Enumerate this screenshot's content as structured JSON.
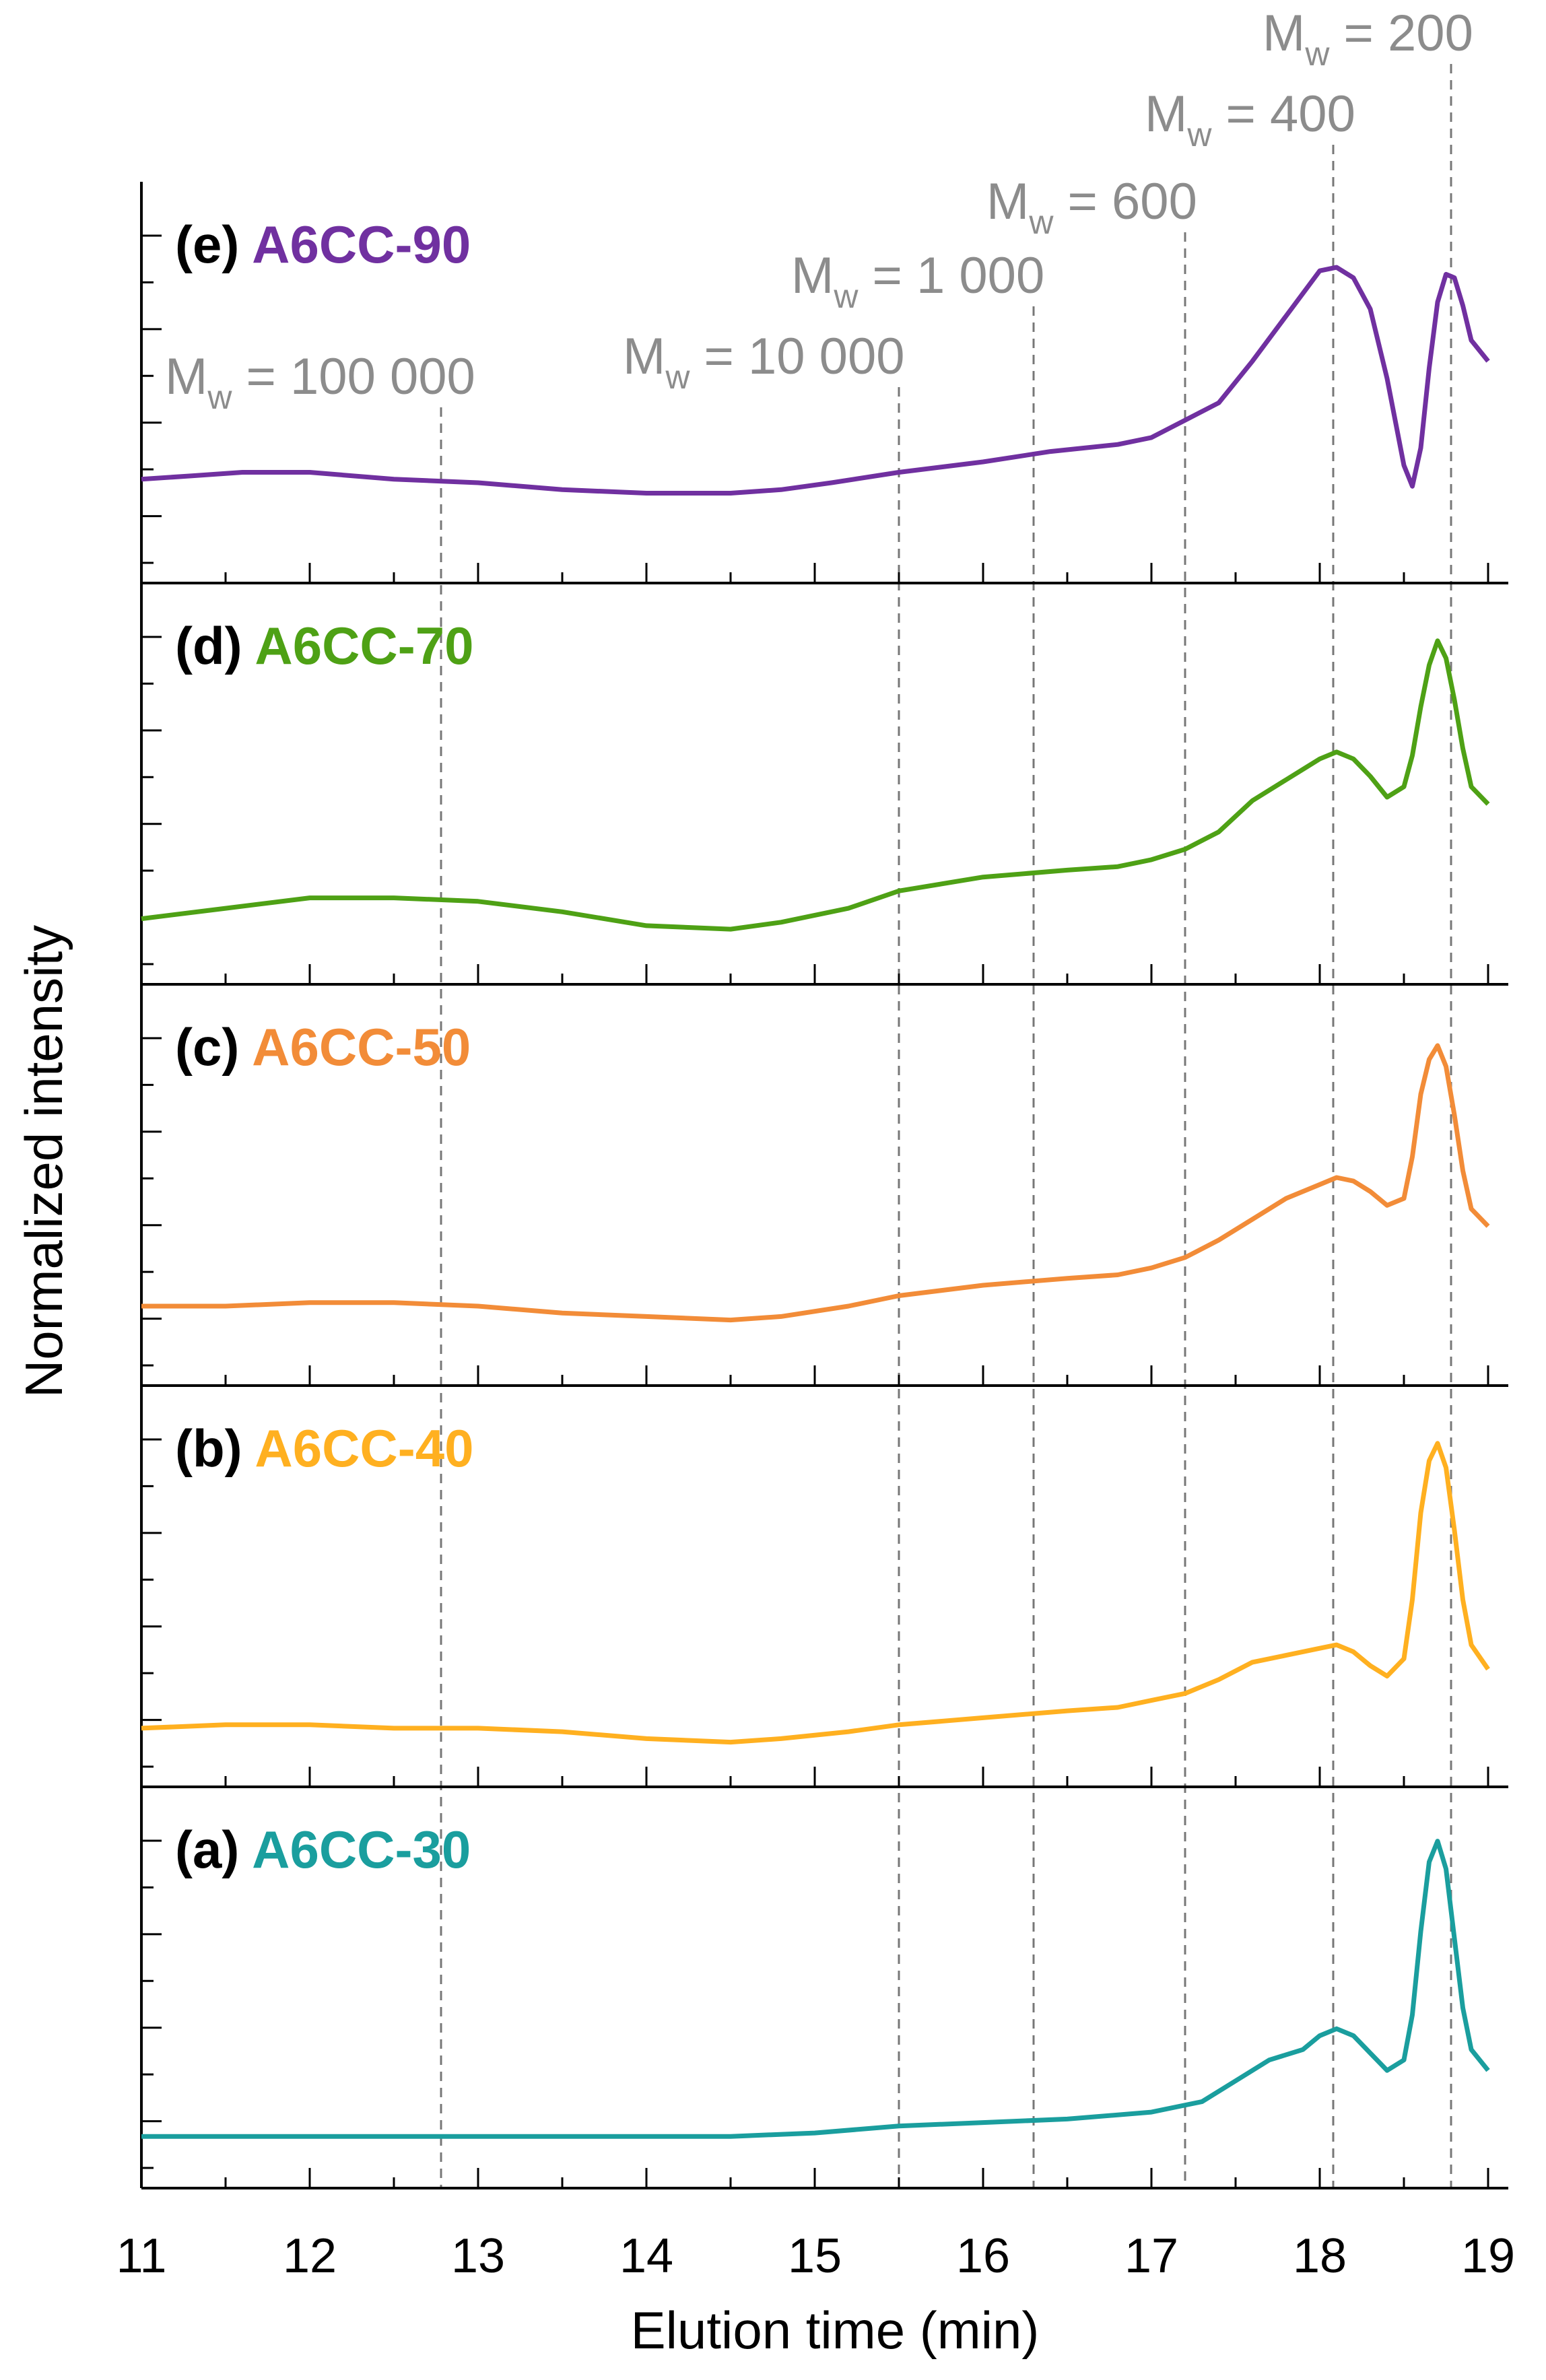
{
  "chart_data": {
    "type": "line",
    "layout": "stacked-panels",
    "xlabel": "Elution time (min)",
    "ylabel": "Normalized intensity",
    "xlim": [
      11,
      19
    ],
    "xticks": [
      "11",
      "12",
      "13",
      "14",
      "15",
      "16",
      "17",
      "18",
      "19"
    ],
    "grid": false,
    "legend": "per-panel label, top-left",
    "reference_lines": [
      {
        "x": 12.78,
        "mw_text": "= 100 000"
      },
      {
        "x": 15.5,
        "mw_text": "= 10 000"
      },
      {
        "x": 16.3,
        "mw_text": "= 1 000"
      },
      {
        "x": 17.2,
        "mw_text": "= 600"
      },
      {
        "x": 18.08,
        "mw_text": "= 400"
      },
      {
        "x": 18.78,
        "mw_text": "= 200"
      }
    ],
    "mw_symbol": "M",
    "mw_subscript": "w",
    "panels": [
      {
        "letter": "(e)",
        "name": "A6CC-90",
        "color": "#7030A0",
        "ylim": [
          0,
          1
        ],
        "x": [
          11.0,
          11.3,
          11.6,
          12.0,
          12.5,
          13.0,
          13.5,
          14.0,
          14.5,
          14.8,
          15.1,
          15.5,
          16.0,
          16.4,
          16.8,
          17.0,
          17.2,
          17.4,
          17.6,
          17.8,
          18.0,
          18.1,
          18.2,
          18.3,
          18.4,
          18.5,
          18.55,
          18.6,
          18.65,
          18.7,
          18.75,
          18.8,
          18.85,
          18.9,
          19.0
        ],
        "y": [
          0.26,
          0.27,
          0.28,
          0.28,
          0.26,
          0.25,
          0.23,
          0.22,
          0.22,
          0.23,
          0.25,
          0.28,
          0.31,
          0.34,
          0.36,
          0.38,
          0.43,
          0.48,
          0.6,
          0.73,
          0.86,
          0.87,
          0.84,
          0.75,
          0.55,
          0.3,
          0.24,
          0.35,
          0.58,
          0.77,
          0.85,
          0.84,
          0.76,
          0.66,
          0.6
        ]
      },
      {
        "letter": "(d)",
        "name": "A6CC-70",
        "color": "#4EA115",
        "ylim": [
          0,
          1
        ],
        "x": [
          11.0,
          11.5,
          12.0,
          12.5,
          13.0,
          13.5,
          14.0,
          14.5,
          14.8,
          15.2,
          15.5,
          16.0,
          16.5,
          16.8,
          17.0,
          17.2,
          17.4,
          17.6,
          17.8,
          18.0,
          18.1,
          18.2,
          18.3,
          18.4,
          18.5,
          18.55,
          18.6,
          18.65,
          18.7,
          18.75,
          18.8,
          18.85,
          18.9,
          19.0
        ],
        "y": [
          0.15,
          0.18,
          0.21,
          0.21,
          0.2,
          0.17,
          0.13,
          0.12,
          0.14,
          0.18,
          0.23,
          0.27,
          0.29,
          0.3,
          0.32,
          0.35,
          0.4,
          0.49,
          0.55,
          0.61,
          0.63,
          0.61,
          0.56,
          0.5,
          0.53,
          0.62,
          0.76,
          0.88,
          0.95,
          0.9,
          0.78,
          0.64,
          0.53,
          0.48
        ]
      },
      {
        "letter": "(c)",
        "name": "A6CC-50",
        "color": "#F28C38",
        "ylim": [
          0,
          1
        ],
        "x": [
          11.0,
          11.5,
          12.0,
          12.5,
          13.0,
          13.5,
          14.0,
          14.5,
          14.8,
          15.2,
          15.5,
          16.0,
          16.5,
          16.8,
          17.0,
          17.2,
          17.4,
          17.6,
          17.8,
          18.0,
          18.1,
          18.2,
          18.3,
          18.4,
          18.5,
          18.55,
          18.6,
          18.65,
          18.7,
          18.75,
          18.8,
          18.85,
          18.9,
          19.0
        ],
        "y": [
          0.19,
          0.19,
          0.2,
          0.2,
          0.19,
          0.17,
          0.16,
          0.15,
          0.16,
          0.19,
          0.22,
          0.25,
          0.27,
          0.28,
          0.3,
          0.33,
          0.38,
          0.44,
          0.5,
          0.54,
          0.56,
          0.55,
          0.52,
          0.48,
          0.5,
          0.62,
          0.8,
          0.9,
          0.94,
          0.88,
          0.74,
          0.58,
          0.47,
          0.42
        ]
      },
      {
        "letter": "(b)",
        "name": "A6CC-40",
        "color": "#FFB020",
        "ylim": [
          0,
          1
        ],
        "x": [
          11.0,
          11.5,
          12.0,
          12.5,
          13.0,
          13.5,
          14.0,
          14.5,
          14.8,
          15.2,
          15.5,
          16.0,
          16.5,
          16.8,
          17.0,
          17.2,
          17.4,
          17.6,
          17.8,
          18.0,
          18.1,
          18.2,
          18.3,
          18.4,
          18.5,
          18.55,
          18.6,
          18.65,
          18.7,
          18.75,
          18.8,
          18.85,
          18.9,
          19.0
        ],
        "y": [
          0.13,
          0.14,
          0.14,
          0.13,
          0.13,
          0.12,
          0.1,
          0.09,
          0.1,
          0.12,
          0.14,
          0.16,
          0.18,
          0.19,
          0.21,
          0.23,
          0.27,
          0.32,
          0.34,
          0.36,
          0.37,
          0.35,
          0.31,
          0.28,
          0.33,
          0.5,
          0.75,
          0.9,
          0.95,
          0.88,
          0.7,
          0.5,
          0.37,
          0.3
        ]
      },
      {
        "letter": "(a)",
        "name": "A6CC-30",
        "color": "#1A9E9E",
        "ylim": [
          0,
          1
        ],
        "x": [
          11.0,
          11.5,
          12.0,
          12.5,
          13.0,
          13.5,
          14.0,
          14.5,
          15.0,
          15.5,
          16.0,
          16.5,
          17.0,
          17.3,
          17.5,
          17.7,
          17.9,
          18.0,
          18.1,
          18.2,
          18.3,
          18.4,
          18.5,
          18.55,
          18.6,
          18.65,
          18.7,
          18.75,
          18.8,
          18.85,
          18.9,
          19.0
        ],
        "y": [
          0.11,
          0.11,
          0.11,
          0.11,
          0.11,
          0.11,
          0.11,
          0.11,
          0.12,
          0.14,
          0.15,
          0.16,
          0.18,
          0.21,
          0.27,
          0.33,
          0.36,
          0.4,
          0.42,
          0.4,
          0.35,
          0.3,
          0.33,
          0.46,
          0.7,
          0.9,
          0.96,
          0.88,
          0.68,
          0.48,
          0.36,
          0.3
        ]
      }
    ]
  }
}
